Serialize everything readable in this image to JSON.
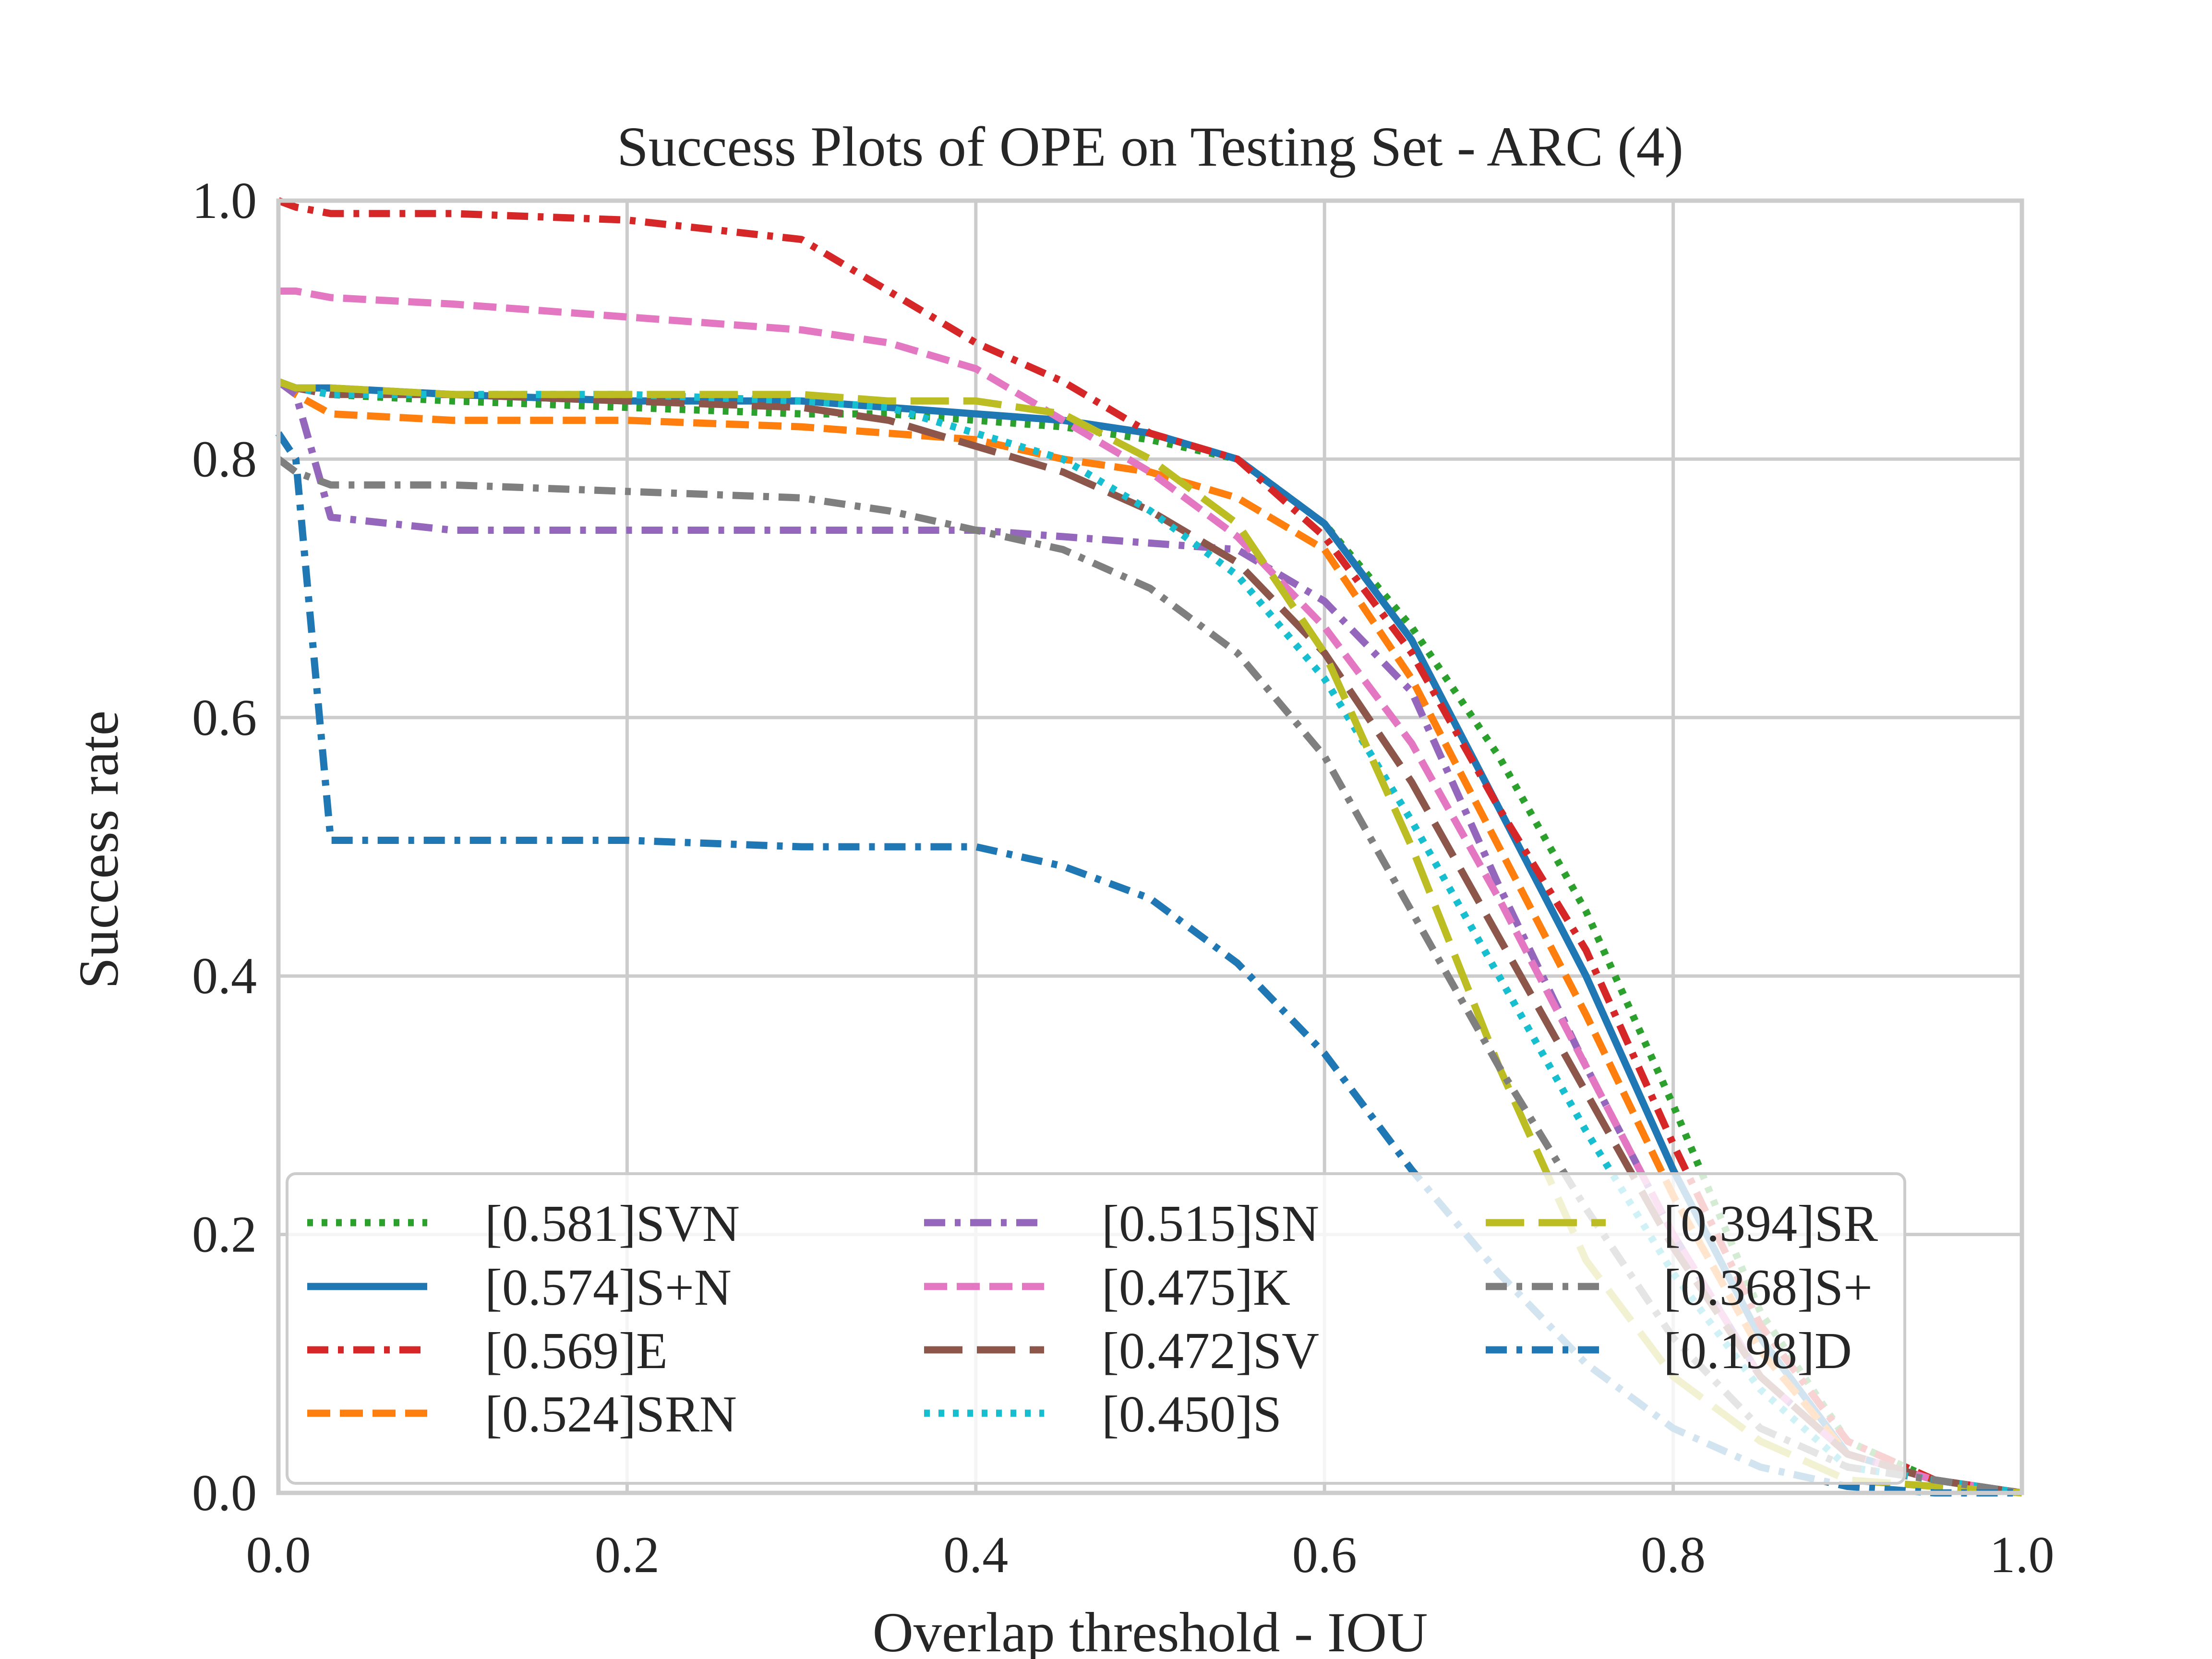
{
  "chart_data": {
    "type": "line",
    "title": "Success Plots of OPE on Testing Set - ARC (4)",
    "xlabel": "Overlap threshold - IOU",
    "ylabel": "Success rate",
    "xlim": [
      0,
      1
    ],
    "ylim": [
      0,
      1
    ],
    "xticks": [
      "0.0",
      "0.2",
      "0.4",
      "0.6",
      "0.8",
      "1.0"
    ],
    "yticks": [
      "0.0",
      "0.2",
      "0.4",
      "0.6",
      "0.8",
      "1.0"
    ],
    "grid": true,
    "legend_position": "lower-center",
    "legend_columns": 3,
    "x": [
      0.0,
      0.01,
      0.03,
      0.1,
      0.2,
      0.3,
      0.35,
      0.4,
      0.45,
      0.5,
      0.55,
      0.6,
      0.65,
      0.7,
      0.75,
      0.8,
      0.85,
      0.9,
      0.95,
      1.0
    ],
    "series": [
      {
        "name": "[0.581]SVN",
        "color": "#2ca02c",
        "dash": "dot",
        "values": [
          0.86,
          0.855,
          0.85,
          0.845,
          0.84,
          0.835,
          0.835,
          0.83,
          0.825,
          0.815,
          0.8,
          0.75,
          0.67,
          0.57,
          0.45,
          0.3,
          0.14,
          0.04,
          0.01,
          0.0
        ]
      },
      {
        "name": "[0.574]S+N",
        "color": "#1f77b4",
        "dash": "solid",
        "values": [
          0.86,
          0.855,
          0.855,
          0.85,
          0.845,
          0.845,
          0.84,
          0.835,
          0.83,
          0.82,
          0.8,
          0.75,
          0.66,
          0.53,
          0.4,
          0.25,
          0.12,
          0.03,
          0.01,
          0.0
        ]
      },
      {
        "name": "[0.569]E",
        "color": "#d62728",
        "dash": "dashdot",
        "values": [
          1.0,
          0.995,
          0.99,
          0.99,
          0.985,
          0.97,
          0.93,
          0.89,
          0.86,
          0.82,
          0.8,
          0.74,
          0.65,
          0.53,
          0.42,
          0.27,
          0.13,
          0.04,
          0.01,
          0.0
        ]
      },
      {
        "name": "[0.524]SRN",
        "color": "#ff7f0e",
        "dash": "dash",
        "values": [
          0.86,
          0.85,
          0.835,
          0.83,
          0.83,
          0.825,
          0.82,
          0.815,
          0.8,
          0.79,
          0.77,
          0.73,
          0.63,
          0.5,
          0.37,
          0.23,
          0.11,
          0.03,
          0.01,
          0.0
        ]
      },
      {
        "name": "[0.515]SN",
        "color": "#9467bd",
        "dash": "dashdot",
        "values": [
          0.86,
          0.85,
          0.755,
          0.745,
          0.745,
          0.745,
          0.745,
          0.745,
          0.74,
          0.735,
          0.73,
          0.69,
          0.62,
          0.47,
          0.33,
          0.2,
          0.09,
          0.03,
          0.01,
          0.0
        ]
      },
      {
        "name": "[0.475]K",
        "color": "#e377c2",
        "dash": "dash",
        "values": [
          0.93,
          0.93,
          0.925,
          0.92,
          0.91,
          0.9,
          0.89,
          0.87,
          0.83,
          0.79,
          0.74,
          0.67,
          0.58,
          0.46,
          0.33,
          0.2,
          0.09,
          0.03,
          0.01,
          0.0
        ]
      },
      {
        "name": "[0.472]SV",
        "color": "#8c564b",
        "dash": "longdash",
        "values": [
          0.86,
          0.855,
          0.85,
          0.85,
          0.845,
          0.84,
          0.83,
          0.81,
          0.79,
          0.76,
          0.72,
          0.65,
          0.55,
          0.43,
          0.31,
          0.19,
          0.09,
          0.03,
          0.01,
          0.0
        ]
      },
      {
        "name": "[0.450]S",
        "color": "#17becf",
        "dash": "dot",
        "values": [
          0.86,
          0.855,
          0.85,
          0.85,
          0.85,
          0.845,
          0.84,
          0.82,
          0.8,
          0.76,
          0.71,
          0.63,
          0.52,
          0.4,
          0.28,
          0.17,
          0.08,
          0.02,
          0.01,
          0.0
        ]
      },
      {
        "name": "[0.394]SR",
        "color": "#bcbd22",
        "dash": "longdash",
        "values": [
          0.86,
          0.855,
          0.855,
          0.85,
          0.85,
          0.85,
          0.845,
          0.845,
          0.835,
          0.8,
          0.75,
          0.65,
          0.5,
          0.33,
          0.18,
          0.09,
          0.04,
          0.01,
          0.005,
          0.0
        ]
      },
      {
        "name": "[0.368]S+",
        "color": "#7f7f7f",
        "dash": "dashdot",
        "values": [
          0.8,
          0.79,
          0.78,
          0.78,
          0.775,
          0.77,
          0.76,
          0.745,
          0.73,
          0.7,
          0.65,
          0.57,
          0.45,
          0.33,
          0.22,
          0.12,
          0.05,
          0.02,
          0.01,
          0.0
        ]
      },
      {
        "name": "[0.198]D",
        "color": "#1f77b4",
        "dash": "dashdot",
        "values": [
          0.82,
          0.8,
          0.505,
          0.505,
          0.505,
          0.5,
          0.5,
          0.5,
          0.485,
          0.46,
          0.41,
          0.34,
          0.25,
          0.17,
          0.1,
          0.05,
          0.02,
          0.005,
          0.0,
          0.0
        ]
      }
    ]
  }
}
